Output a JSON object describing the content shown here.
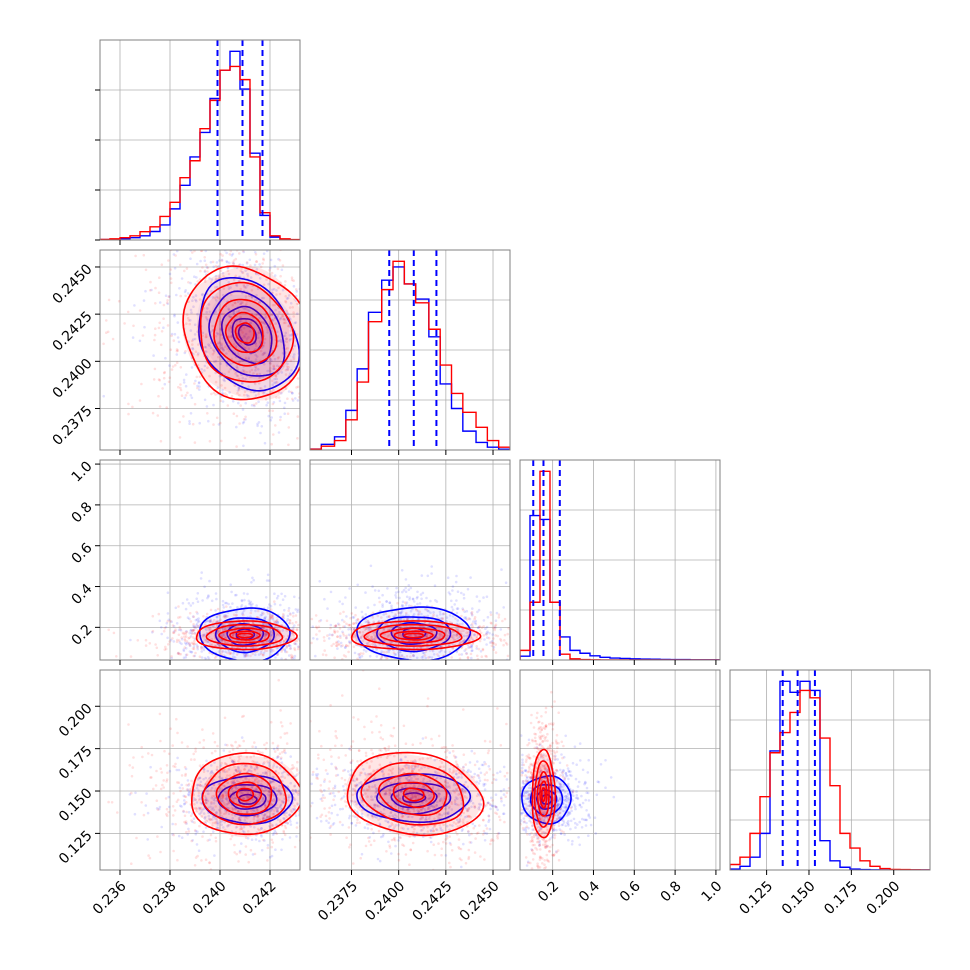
{
  "chart_data": {
    "type": "corner",
    "title": "",
    "grid": true,
    "colors": {
      "series_a": "#0000ff",
      "series_b": "#ff0000",
      "quantile_line": "#0000ff",
      "grid": "#b0b0b0",
      "frame": "#808080"
    },
    "series": [
      {
        "color": "#0000ff"
      },
      {
        "color": "#ff0000"
      }
    ],
    "parameters": [
      {
        "range": [
          0.2352,
          0.2432
        ],
        "ticks": [
          0.236,
          0.238,
          0.24,
          0.242
        ],
        "tick_labels": [
          "0.236",
          "0.238",
          "0.240",
          "0.242"
        ],
        "quantiles": [
          0.2399,
          0.2409,
          0.2417
        ],
        "hist_edges": [
          0.2352,
          0.2356,
          0.236,
          0.2364,
          0.2368,
          0.2372,
          0.2376,
          0.238,
          0.2384,
          0.2388,
          0.2392,
          0.2396,
          0.24,
          0.2404,
          0.2408,
          0.2412,
          0.2416,
          0.242,
          0.2424,
          0.2428,
          0.2432
        ],
        "hist": {
          "a": [
            0.002,
            0.004,
            0.007,
            0.012,
            0.022,
            0.045,
            0.08,
            0.165,
            0.29,
            0.44,
            0.57,
            0.75,
            0.9,
            1.0,
            0.8,
            0.46,
            0.13,
            0.015,
            0.004,
            0.001
          ],
          "b": [
            0.003,
            0.006,
            0.012,
            0.022,
            0.044,
            0.07,
            0.125,
            0.2,
            0.33,
            0.42,
            0.59,
            0.74,
            0.9,
            0.92,
            0.85,
            0.44,
            0.145,
            0.022,
            0.006,
            0.002
          ]
        }
      },
      {
        "range": [
          0.2353,
          0.2459
        ],
        "ticks": [
          0.2375,
          0.24,
          0.2425,
          0.245
        ],
        "tick_labels": [
          "0.2375",
          "0.2400",
          "0.2425",
          "0.2450"
        ],
        "quantiles": [
          0.2395,
          0.2408,
          0.242
        ],
        "hist_edges": [
          0.2353,
          0.2359,
          0.2366,
          0.2372,
          0.2378,
          0.2384,
          0.2391,
          0.2397,
          0.2403,
          0.2409,
          0.2416,
          0.2422,
          0.2428,
          0.2434,
          0.2441,
          0.2447,
          0.2453,
          0.2459
        ],
        "hist": {
          "a": [
            0.005,
            0.03,
            0.07,
            0.21,
            0.43,
            0.73,
            0.9,
            0.97,
            0.88,
            0.8,
            0.6,
            0.35,
            0.22,
            0.1,
            0.04,
            0.015,
            0.004
          ],
          "b": [
            0.004,
            0.02,
            0.05,
            0.16,
            0.36,
            0.68,
            0.85,
            1.0,
            0.88,
            0.78,
            0.64,
            0.45,
            0.3,
            0.2,
            0.12,
            0.05,
            0.015
          ]
        }
      },
      {
        "range": [
          0.04,
          1.02
        ],
        "ticks": [
          0.2,
          0.4,
          0.6,
          0.8,
          1.0
        ],
        "tick_labels": [
          "0.2",
          "0.4",
          "0.6",
          "0.8",
          "1.0"
        ],
        "quantiles": [
          0.105,
          0.155,
          0.235
        ],
        "hist_edges": [
          0.04,
          0.089,
          0.138,
          0.187,
          0.236,
          0.285,
          0.334,
          0.383,
          0.432,
          0.481,
          0.53,
          0.579,
          0.628,
          0.677,
          0.726,
          0.775,
          0.824,
          0.873,
          0.922,
          0.971,
          1.02
        ],
        "hist": {
          "a": [
            0.02,
            0.75,
            0.73,
            0.3,
            0.12,
            0.05,
            0.035,
            0.022,
            0.014,
            0.01,
            0.008,
            0.006,
            0.005,
            0.004,
            0.003,
            0.002,
            0.002,
            0.001,
            0.001,
            0.001
          ],
          "b": [
            0.05,
            0.3,
            0.98,
            0.3,
            0.03,
            0.006,
            0.002,
            0.001,
            0.0,
            0.0,
            0.0,
            0.0,
            0.0,
            0.0,
            0.0,
            0.0,
            0.0,
            0.0,
            0.0,
            0.0
          ]
        }
      },
      {
        "range": [
          0.1034,
          0.2214
        ],
        "ticks": [
          0.125,
          0.15,
          0.175,
          0.2
        ],
        "tick_labels": [
          "0.125",
          "0.150",
          "0.175",
          "0.200"
        ],
        "quantiles": [
          0.1345,
          0.1433,
          0.1535
        ],
        "hist_edges": [
          0.1034,
          0.1093,
          0.1152,
          0.1211,
          0.127,
          0.1329,
          0.1388,
          0.1447,
          0.1506,
          0.1565,
          0.1624,
          0.1683,
          0.1742,
          0.1801,
          0.186,
          0.1919,
          0.1978,
          0.2037,
          0.2096,
          0.2155,
          0.2214
        ],
        "hist": {
          "a": [
            0.005,
            0.02,
            0.07,
            0.2,
            0.65,
            1.03,
            0.97,
            1.03,
            0.98,
            0.16,
            0.05,
            0.015,
            0.005,
            0.002,
            0.001,
            0.0,
            0.0,
            0.0,
            0.0,
            0.0
          ],
          "b": [
            0.03,
            0.07,
            0.2,
            0.4,
            0.64,
            0.75,
            0.86,
            0.98,
            0.94,
            0.72,
            0.46,
            0.2,
            0.12,
            0.05,
            0.02,
            0.008,
            0.003,
            0.002,
            0.001,
            0.0
          ]
        }
      }
    ],
    "pair_plots": [
      {
        "row": 1,
        "col": 0,
        "a": {
          "center": [
            0.2411,
            0.2414
          ],
          "spread": [
            0.0009,
            0.0016
          ],
          "tilt_deg": 32,
          "levels": [
            0.35,
            0.6,
            1.0,
            1.5,
            2.0
          ]
        },
        "b": {
          "center": [
            0.241,
            0.2415
          ],
          "spread": [
            0.0012,
            0.0018
          ],
          "tilt_deg": 28,
          "levels": [
            0.3,
            0.6,
            1.0,
            1.5,
            2.0
          ]
        }
      },
      {
        "row": 2,
        "col": 0,
        "a": {
          "center": [
            0.241,
            0.165
          ],
          "spread": [
            0.0009,
            0.065
          ],
          "tilt_deg": 0,
          "levels": [
            0.4,
            0.8,
            1.3,
            2.0
          ]
        },
        "b": {
          "center": [
            0.241,
            0.16
          ],
          "spread": [
            0.001,
            0.035
          ],
          "tilt_deg": 0,
          "levels": [
            0.3,
            0.6,
            1.0,
            1.5,
            2.0
          ]
        }
      },
      {
        "row": 2,
        "col": 1,
        "a": {
          "center": [
            0.2408,
            0.17
          ],
          "spread": [
            0.0015,
            0.065
          ],
          "tilt_deg": 0,
          "levels": [
            0.4,
            0.8,
            1.3,
            2.0
          ]
        },
        "b": {
          "center": [
            0.2408,
            0.16
          ],
          "spread": [
            0.0017,
            0.035
          ],
          "tilt_deg": 0,
          "levels": [
            0.3,
            0.6,
            1.0,
            1.5,
            2.0
          ]
        }
      },
      {
        "row": 3,
        "col": 0,
        "a": {
          "center": [
            0.2411,
            0.145
          ],
          "spread": [
            0.0009,
            0.007
          ],
          "tilt_deg": 0,
          "levels": [
            0.4,
            0.8,
            1.3,
            2.0
          ]
        },
        "b": {
          "center": [
            0.241,
            0.148
          ],
          "spread": [
            0.0011,
            0.012
          ],
          "tilt_deg": 0,
          "levels": [
            0.3,
            0.6,
            1.0,
            1.5,
            2.0
          ]
        }
      },
      {
        "row": 3,
        "col": 1,
        "a": {
          "center": [
            0.2408,
            0.146
          ],
          "spread": [
            0.0015,
            0.007
          ],
          "tilt_deg": 0,
          "levels": [
            0.4,
            0.8,
            1.3,
            2.0
          ]
        },
        "b": {
          "center": [
            0.2408,
            0.148
          ],
          "spread": [
            0.0018,
            0.012
          ],
          "tilt_deg": -8,
          "levels": [
            0.3,
            0.6,
            1.0,
            1.5,
            2.0
          ]
        }
      },
      {
        "row": 3,
        "col": 2,
        "a": {
          "center": [
            0.17,
            0.145
          ],
          "spread": [
            0.06,
            0.007
          ],
          "tilt_deg": 0,
          "levels": [
            0.4,
            0.8,
            1.3,
            2.0
          ]
        },
        "b": {
          "center": [
            0.155,
            0.148
          ],
          "spread": [
            0.028,
            0.013
          ],
          "tilt_deg": 0,
          "levels": [
            0.3,
            0.6,
            1.0,
            1.5,
            2.0
          ]
        }
      }
    ]
  }
}
